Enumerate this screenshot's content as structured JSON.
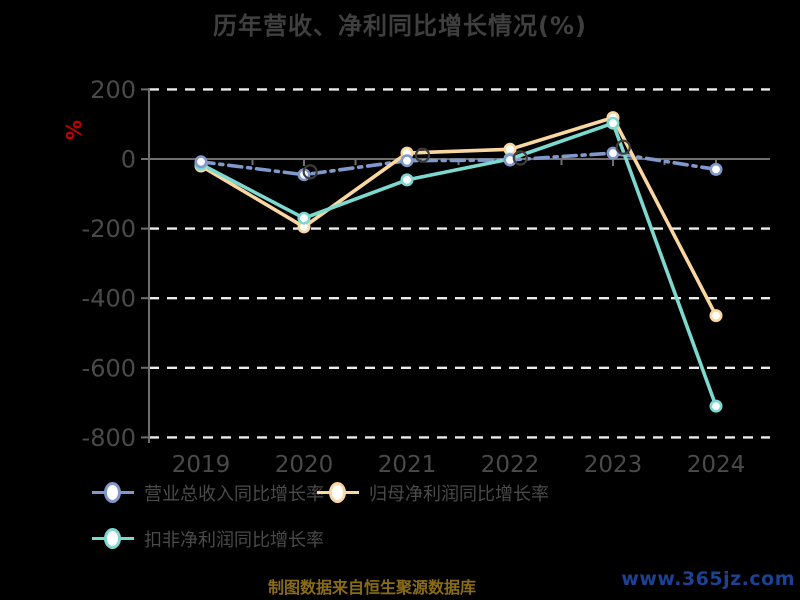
{
  "colors": {
    "background": "#000000",
    "title": "#3f3f3f",
    "axis": "#6f6f6f",
    "tick_label": "#4a4a4a",
    "gridline": "#ececec",
    "ylabel": "#c40000",
    "legend_text": "#4a4a4a",
    "source_text": "#8a6c17",
    "watermark_text": "#1d4193",
    "open_marker": "#3c3c3c",
    "marker_fill": "#ffffff"
  },
  "chart_data": {
    "type": "line",
    "title": "历年营收、净利同比增长情况(%)",
    "ylabel": "%",
    "xlabel": "",
    "categories": [
      2019,
      2020,
      2021,
      2022,
      2023,
      2024
    ],
    "yticks": [
      200,
      0,
      -200,
      -400,
      -600,
      -800
    ],
    "ylim": [
      -800,
      200
    ],
    "grid": "horizontal dashed white lines on black, solid gray zero axis",
    "legend_position": "bottom-left, two rows",
    "series": [
      {
        "name": "营业总收入同比增长率",
        "color": "#8098cc",
        "line_style": "dash-dot",
        "values": [
          -8,
          -45,
          -5,
          -3,
          17,
          -30
        ]
      },
      {
        "name": "归母净利润同比增长率",
        "color": "#fad7a0",
        "line_style": "solid",
        "values": [
          -20,
          -195,
          17,
          28,
          119,
          -450
        ]
      },
      {
        "name": "扣非净利润同比增长率",
        "color": "#7dd8d0",
        "line_style": "solid",
        "values": [
          -15,
          -170,
          -60,
          0,
          103,
          -710
        ]
      }
    ],
    "extra_open_markers": [
      {
        "x": 2020.06,
        "y": -37
      },
      {
        "x": 2021.15,
        "y": 11
      },
      {
        "x": 2022.1,
        "y": 3
      },
      {
        "x": 2023.1,
        "y": 34
      }
    ]
  },
  "footer": {
    "source": "制图数据来自恒生聚源数据库",
    "watermark": "www.365jz.com"
  }
}
